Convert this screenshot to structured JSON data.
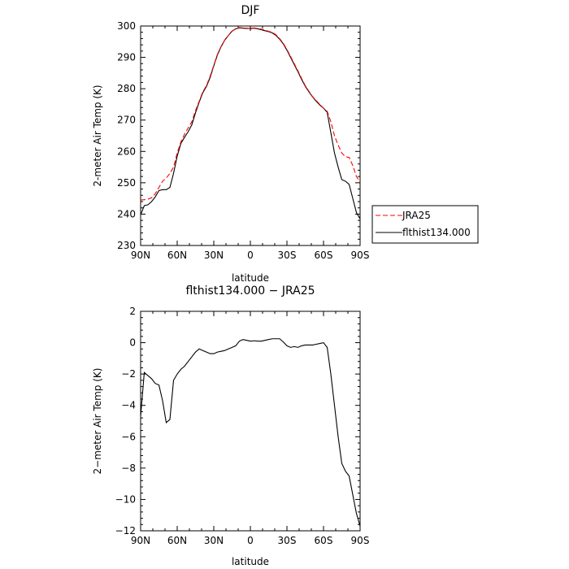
{
  "chart_data": [
    {
      "type": "line",
      "title": "DJF",
      "xlabel": "latitude",
      "ylabel": "2-meter Air Temp (K)",
      "x_ticks": [
        "90N",
        "60N",
        "30N",
        "0",
        "30S",
        "60S",
        "90S"
      ],
      "y_ticks": [
        "230",
        "240",
        "250",
        "260",
        "270",
        "280",
        "290",
        "300"
      ],
      "xlim": [
        90,
        -90
      ],
      "ylim": [
        230,
        300
      ],
      "legend_position": "right",
      "series": [
        {
          "name": "JRA25",
          "color": "#ff0000",
          "style": "dashed",
          "x": [
            90,
            87,
            84,
            81,
            78,
            75,
            72,
            69,
            66,
            63,
            60,
            57,
            54,
            51,
            48,
            45,
            42,
            39,
            36,
            33,
            30,
            27,
            24,
            21,
            18,
            15,
            12,
            9,
            6,
            3,
            0,
            -3,
            -6,
            -9,
            -12,
            -15,
            -18,
            -21,
            -24,
            -27,
            -30,
            -33,
            -36,
            -39,
            -42,
            -45,
            -48,
            -51,
            -54,
            -57,
            -60,
            -63,
            -66,
            -69,
            -72,
            -75,
            -78,
            -81,
            -84,
            -87,
            -90
          ],
          "y": [
            244.5,
            244.6,
            244.8,
            245.2,
            246.5,
            248.5,
            250.5,
            251.5,
            253.0,
            255.0,
            259.5,
            263.0,
            265.5,
            267.5,
            269.5,
            273.0,
            276.0,
            279.0,
            281.0,
            284.0,
            287.5,
            291.0,
            293.5,
            295.5,
            297.0,
            298.3,
            299.2,
            299.5,
            299.4,
            299.3,
            299.2,
            299.4,
            299.2,
            299.0,
            298.7,
            298.3,
            298.0,
            297.2,
            296.0,
            294.5,
            292.5,
            290.3,
            288.0,
            285.7,
            283.3,
            281.0,
            279.2,
            277.5,
            276.2,
            275.0,
            273.8,
            272.8,
            269.5,
            265.0,
            262.0,
            259.5,
            258.3,
            258.1,
            255.5,
            252.0,
            250.2
          ]
        },
        {
          "name": "flthist134.000",
          "color": "#000000",
          "style": "solid",
          "x": [
            90,
            87,
            84,
            81,
            78,
            75,
            72,
            69,
            66,
            63,
            60,
            57,
            54,
            51,
            48,
            45,
            42,
            39,
            36,
            33,
            30,
            27,
            24,
            21,
            18,
            15,
            12,
            9,
            6,
            3,
            0,
            -3,
            -6,
            -9,
            -12,
            -15,
            -18,
            -21,
            -24,
            -27,
            -30,
            -33,
            -36,
            -39,
            -42,
            -45,
            -48,
            -51,
            -54,
            -57,
            -60,
            -63,
            -66,
            -69,
            -72,
            -75,
            -78,
            -81,
            -84,
            -87,
            -90
          ],
          "y": [
            239.8,
            242.7,
            243.0,
            244.0,
            245.5,
            247.5,
            247.8,
            247.8,
            248.5,
            253.0,
            258.5,
            262.5,
            264.5,
            266.3,
            268.5,
            272.3,
            275.7,
            278.7,
            280.7,
            283.6,
            287.3,
            290.8,
            293.4,
            295.5,
            297.0,
            298.4,
            299.1,
            299.4,
            299.3,
            299.2,
            299.2,
            299.3,
            299.1,
            298.8,
            298.5,
            298.2,
            297.8,
            297.0,
            295.8,
            294.3,
            292.3,
            290.0,
            287.7,
            285.4,
            283.0,
            280.8,
            279.0,
            277.4,
            276.0,
            274.8,
            273.8,
            272.5,
            266.0,
            259.5,
            255.0,
            251.0,
            250.5,
            249.5,
            245.0,
            240.5,
            238.5
          ]
        }
      ]
    },
    {
      "type": "line",
      "title": "flthist134.000 − JRA25",
      "xlabel": "latitude",
      "ylabel": "2−meter Air Temp (K)",
      "x_ticks": [
        "90N",
        "60N",
        "30N",
        "0",
        "30S",
        "60S",
        "90S"
      ],
      "y_ticks": [
        "2",
        "0",
        "−2",
        "−4",
        "−6",
        "−8",
        "−10",
        "−12"
      ],
      "xlim": [
        90,
        -90
      ],
      "ylim": [
        -12,
        2
      ],
      "series": [
        {
          "color": "#000000",
          "style": "solid",
          "x": [
            90,
            87,
            84,
            81,
            78,
            75,
            72,
            69,
            66,
            63,
            60,
            57,
            54,
            51,
            48,
            45,
            42,
            39,
            36,
            33,
            30,
            27,
            24,
            21,
            18,
            15,
            12,
            9,
            6,
            3,
            0,
            -3,
            -6,
            -9,
            -12,
            -15,
            -18,
            -21,
            -24,
            -27,
            -30,
            -33,
            -36,
            -39,
            -42,
            -45,
            -48,
            -51,
            -54,
            -57,
            -60,
            -63,
            -66,
            -69,
            -72,
            -75,
            -78,
            -81,
            -84,
            -87,
            -90
          ],
          "y": [
            -4.7,
            -1.9,
            -2.1,
            -2.3,
            -2.6,
            -2.7,
            -3.7,
            -5.1,
            -4.9,
            -2.4,
            -2.0,
            -1.7,
            -1.5,
            -1.2,
            -0.9,
            -0.6,
            -0.4,
            -0.5,
            -0.6,
            -0.7,
            -0.7,
            -0.6,
            -0.55,
            -0.5,
            -0.4,
            -0.3,
            -0.2,
            0.1,
            0.2,
            0.15,
            0.1,
            0.12,
            0.1,
            0.1,
            0.15,
            0.2,
            0.25,
            0.25,
            0.25,
            0.05,
            -0.2,
            -0.3,
            -0.25,
            -0.3,
            -0.2,
            -0.15,
            -0.15,
            -0.15,
            -0.1,
            -0.05,
            0.0,
            -0.3,
            -2.0,
            -4.0,
            -6.0,
            -7.7,
            -8.2,
            -8.5,
            -9.7,
            -10.9,
            -11.7
          ]
        }
      ]
    }
  ]
}
